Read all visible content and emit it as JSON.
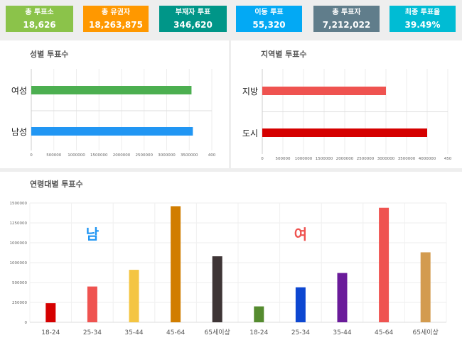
{
  "kpis": [
    {
      "title": "총 투표소",
      "value": "18,626",
      "color": "#8bc34a"
    },
    {
      "title": "총 유권자",
      "value": "18,263,875",
      "color": "#ff9800"
    },
    {
      "title": "부재자 투표",
      "value": "346,620",
      "color": "#009688"
    },
    {
      "title": "이동 투표",
      "value": "55,320",
      "color": "#03a9f4"
    },
    {
      "title": "총 투표자",
      "value": "7,212,022",
      "color": "#607d8b"
    },
    {
      "title": "최종 투표율",
      "value": "39.49%",
      "color": "#00bcd4"
    }
  ],
  "chart_data": [
    {
      "type": "bar",
      "orientation": "horizontal",
      "title": "성별 투표수",
      "categories": [
        "여성",
        "남성"
      ],
      "values": [
        3550000,
        3580000
      ],
      "colors": [
        "#4caf50",
        "#2196f3"
      ],
      "xlim": [
        0,
        4000000
      ],
      "ticks": [
        "0",
        "500000",
        "1000000",
        "1500000",
        "2000000",
        "2500000",
        "3000000",
        "3500000",
        "400"
      ],
      "grid": true
    },
    {
      "type": "bar",
      "orientation": "horizontal",
      "title": "지역별 투표수",
      "categories": [
        "지방",
        "도시"
      ],
      "values": [
        3000000,
        4000000
      ],
      "colors": [
        "#ef5350",
        "#d50000"
      ],
      "xlim": [
        0,
        4500000
      ],
      "ticks": [
        "0",
        "500000",
        "1000000",
        "1500000",
        "2000000",
        "2500000",
        "3000000",
        "3500000",
        "4000000",
        "450"
      ],
      "grid": true
    },
    {
      "type": "bar",
      "title": "연령대별 투표수",
      "categories": [
        "18-24",
        "25-34",
        "35-44",
        "45-64",
        "65세이상",
        "18-24",
        "25-34",
        "35-44",
        "45-64",
        "65세이상"
      ],
      "values": [
        240000,
        450000,
        660000,
        1460000,
        830000,
        200000,
        440000,
        620000,
        1440000,
        880000
      ],
      "colors": [
        "#d50000",
        "#ef5350",
        "#f4c542",
        "#d17d00",
        "#3e3536",
        "#558b2f",
        "#0d47d1",
        "#6a1b9a",
        "#ef5350",
        "#d39b4f"
      ],
      "ylim": [
        0,
        1500000
      ],
      "yticks": [
        "0",
        "250000",
        "500000",
        "1000000",
        "1000000",
        "1250000",
        "1500000"
      ],
      "annotations": [
        {
          "text": "남",
          "color": "#2196f3"
        },
        {
          "text": "여",
          "color": "#ef5350"
        }
      ],
      "grid": true
    }
  ]
}
